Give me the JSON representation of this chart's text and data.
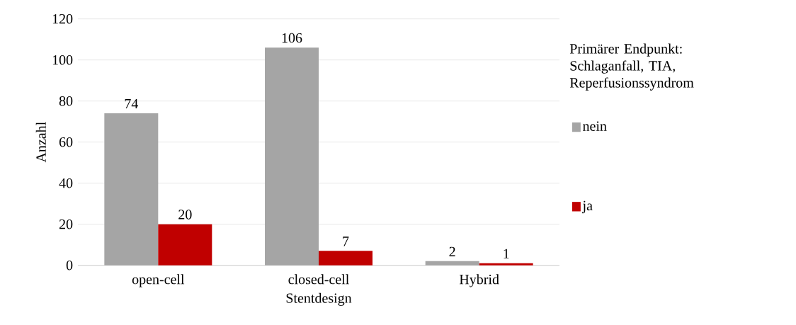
{
  "chart_data": {
    "type": "bar",
    "xlabel": "Stentdesign",
    "ylabel": "Anzahl",
    "legend_title": "Primärer Endpunkt: Schlaganfall, TIA, Reperfusionssyndrom",
    "categories": [
      "open-cell",
      "closed-cell",
      "Hybrid"
    ],
    "series": [
      {
        "name": "nein",
        "color": "#a5a5a5",
        "values": [
          74,
          106,
          2
        ]
      },
      {
        "name": "ja",
        "color": "#c00000",
        "values": [
          20,
          7,
          1
        ]
      }
    ],
    "ylim": [
      0,
      120
    ],
    "yticks": [
      0,
      20,
      40,
      60,
      80,
      100,
      120
    ],
    "grid": "y",
    "legend": "right",
    "data_labels": true
  }
}
